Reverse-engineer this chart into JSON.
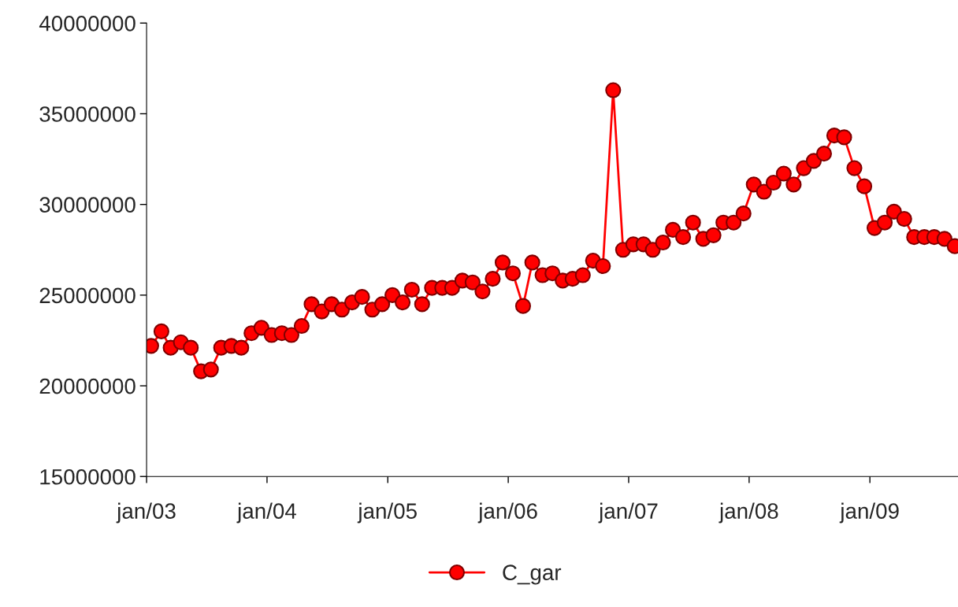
{
  "chart_data": {
    "type": "line",
    "x": [
      "2003-01-15",
      "2003-02-15",
      "2003-03-15",
      "2003-04-15",
      "2003-05-15",
      "2003-06-15",
      "2003-07-15",
      "2003-08-15",
      "2003-09-15",
      "2003-10-15",
      "2003-11-15",
      "2003-12-15",
      "2004-01-15",
      "2004-02-15",
      "2004-03-15",
      "2004-04-15",
      "2004-05-15",
      "2004-06-15",
      "2004-07-15",
      "2004-08-15",
      "2004-09-15",
      "2004-10-15",
      "2004-11-15",
      "2004-12-15",
      "2005-01-15",
      "2005-02-15",
      "2005-03-15",
      "2005-04-15",
      "2005-05-15",
      "2005-06-15",
      "2005-07-15",
      "2005-08-15",
      "2005-09-15",
      "2005-10-15",
      "2005-11-15",
      "2005-12-15",
      "2006-01-15",
      "2006-02-15",
      "2006-03-15",
      "2006-04-15",
      "2006-05-15",
      "2006-06-15",
      "2006-07-15",
      "2006-08-15",
      "2006-09-15",
      "2006-10-15",
      "2006-11-15",
      "2006-12-15",
      "2007-01-15",
      "2007-02-15",
      "2007-03-15",
      "2007-04-15",
      "2007-05-15",
      "2007-06-15",
      "2007-07-15",
      "2007-08-15",
      "2007-09-15",
      "2007-10-15",
      "2007-11-15",
      "2007-12-15",
      "2008-01-15",
      "2008-02-15",
      "2008-03-15",
      "2008-04-15",
      "2008-05-15",
      "2008-06-15",
      "2008-07-15",
      "2008-08-15",
      "2008-09-15",
      "2008-10-15",
      "2008-11-15",
      "2008-12-15",
      "2009-01-15",
      "2009-02-15",
      "2009-03-15",
      "2009-04-15",
      "2009-05-15",
      "2009-06-15",
      "2009-07-15",
      "2009-08-15",
      "2009-09-15"
    ],
    "series": [
      {
        "name": "C_gar",
        "color": "#ff0000",
        "values": [
          22200000,
          23000000,
          22100000,
          22400000,
          22100000,
          20800000,
          20900000,
          22100000,
          22200000,
          22100000,
          22900000,
          23200000,
          22800000,
          22900000,
          22800000,
          23300000,
          24500000,
          24100000,
          24500000,
          24200000,
          24600000,
          24900000,
          24200000,
          24500000,
          25000000,
          24600000,
          25300000,
          24500000,
          25400000,
          25400000,
          25400000,
          25800000,
          25700000,
          25200000,
          25900000,
          26800000,
          26200000,
          24400000,
          26800000,
          26100000,
          26200000,
          25800000,
          25900000,
          26100000,
          26900000,
          26600000,
          36300000,
          27500000,
          27800000,
          27800000,
          27500000,
          27900000,
          28600000,
          28200000,
          29000000,
          28100000,
          28300000,
          29000000,
          29000000,
          29500000,
          31100000,
          30700000,
          31200000,
          31700000,
          31100000,
          32000000,
          32400000,
          32800000,
          33800000,
          33700000,
          32000000,
          31000000,
          28700000,
          29000000,
          29600000,
          29200000,
          28200000,
          28200000,
          28200000,
          28100000,
          27700000
        ]
      }
    ],
    "xlim": [
      "2003-01-01",
      "2009-09-25"
    ],
    "xticks": [
      {
        "value": "2003-01-01",
        "label": "jan/03"
      },
      {
        "value": "2004-01-01",
        "label": "jan/04"
      },
      {
        "value": "2005-01-01",
        "label": "jan/05"
      },
      {
        "value": "2006-01-01",
        "label": "jan/06"
      },
      {
        "value": "2007-01-01",
        "label": "jan/07"
      },
      {
        "value": "2008-01-01",
        "label": "jan/08"
      },
      {
        "value": "2009-01-01",
        "label": "jan/09"
      }
    ],
    "ylim": [
      15000000,
      40000000
    ],
    "yticks": [
      15000000,
      20000000,
      25000000,
      30000000,
      35000000,
      40000000
    ],
    "grid": false,
    "legend": "bottom",
    "marker": "circle",
    "line_style": "solid"
  }
}
